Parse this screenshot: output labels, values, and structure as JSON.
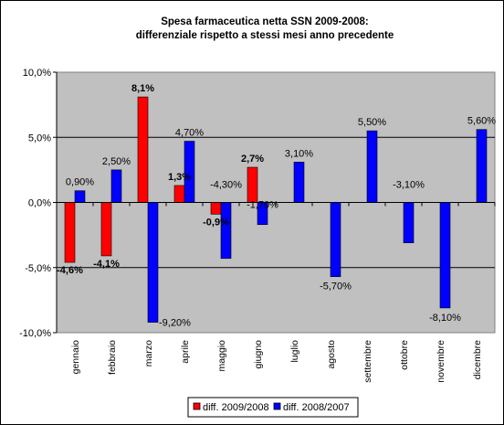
{
  "chart_data": {
    "type": "bar",
    "title_lines": [
      "Spesa farmaceutica netta SSN 2009-2008:",
      "differenziale rispetto a stessi mesi anno precedente"
    ],
    "categories": [
      "gennaio",
      "febbraio",
      "marzo",
      "aprile",
      "maggio",
      "giugno",
      "luglio",
      "agosto",
      "settembre",
      "ottobre",
      "novembre",
      "dicembre"
    ],
    "series": [
      {
        "name": "diff. 2009/2008",
        "color": "#ff0000",
        "values": [
          -4.6,
          -4.1,
          8.1,
          1.3,
          -0.9,
          2.7,
          null,
          null,
          null,
          null,
          null,
          null
        ],
        "labels": [
          "-4,6%",
          "-4,1%",
          "8,1%",
          "1,3%",
          "-0,9%",
          "2,7%",
          "",
          "",
          "",
          "",
          "",
          ""
        ]
      },
      {
        "name": "diff. 2008/2007",
        "color": "#0000ff",
        "values": [
          0.9,
          2.5,
          -9.2,
          4.7,
          -4.3,
          -1.7,
          3.1,
          -5.7,
          5.5,
          -3.1,
          -8.1,
          5.6
        ],
        "labels": [
          "0,90%",
          "2,50%",
          "-9,20%",
          "4,70%",
          "-4,30%",
          "-1,70%",
          "3,10%",
          "-5,70%",
          "5,50%",
          "-3,10%",
          "-8,10%",
          "5,60%"
        ]
      }
    ],
    "y_ticks": [
      10,
      5,
      0,
      -5,
      -10
    ],
    "y_tick_labels": [
      "10,0%",
      "5,0%",
      "0,0%",
      "-5,0%",
      "-10,0%"
    ],
    "ylim": [
      -10,
      10
    ],
    "grid": true,
    "plot_background": "#c0c0c0",
    "legend_position": "bottom"
  }
}
